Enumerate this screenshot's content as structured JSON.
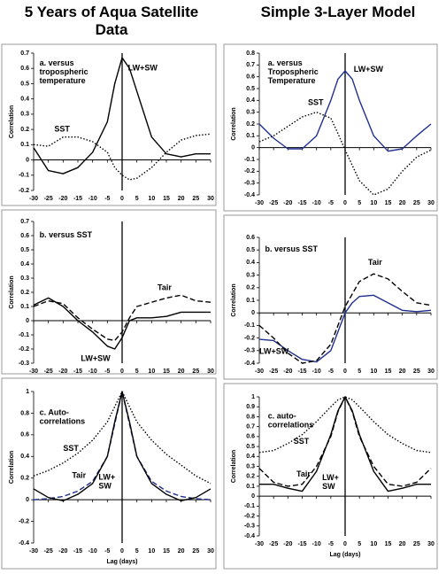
{
  "column_titles": [
    "5 Years of Aqua Satellite Data",
    "Simple 3-Layer Model"
  ],
  "chart_data": [
    {
      "type": "line",
      "panel_label": [
        "a. versus",
        "tropospheric",
        "temperature"
      ],
      "y_label": "Correlation",
      "x": [
        -30,
        -25,
        -20,
        -15,
        -10,
        -5,
        -2.5,
        0,
        2.5,
        5,
        10,
        15,
        20,
        25,
        30
      ],
      "xlim": [
        -30,
        30
      ],
      "xticks": [
        -30,
        -25,
        -20,
        -15,
        -10,
        -5,
        0,
        5,
        10,
        15,
        20,
        25,
        30
      ],
      "ylim": [
        -0.2,
        0.7
      ],
      "yticks": [
        -0.2,
        -0.1,
        0,
        0.1,
        0.2,
        0.3,
        0.4,
        0.5,
        0.6,
        0.7
      ],
      "series": [
        {
          "name": "LW+SW",
          "color": "#000000",
          "dash": "solid",
          "values": [
            0.08,
            -0.07,
            -0.09,
            -0.05,
            0.05,
            0.25,
            0.5,
            0.67,
            0.6,
            0.45,
            0.15,
            0.04,
            0.02,
            0.04,
            0.04
          ]
        },
        {
          "name": "SST",
          "color": "#000000",
          "dash": "dotted",
          "values": [
            0.1,
            0.09,
            0.15,
            0.15,
            0.12,
            0.05,
            -0.05,
            -0.1,
            -0.13,
            -0.12,
            -0.05,
            0.05,
            0.13,
            0.16,
            0.17
          ]
        }
      ]
    },
    {
      "type": "line",
      "panel_label": [
        "a. versus",
        "Tropospheric",
        "Temperature"
      ],
      "y_label": "Correlation",
      "x": [
        -30,
        -25,
        -20,
        -15,
        -10,
        -5,
        -2.5,
        0,
        2.5,
        5,
        10,
        15,
        20,
        25,
        30
      ],
      "xlim": [
        -30,
        30
      ],
      "xticks": [
        -30,
        -25,
        -20,
        -15,
        -10,
        -5,
        0,
        5,
        10,
        15,
        20,
        25,
        30
      ],
      "ylim": [
        -0.4,
        0.8
      ],
      "yticks": [
        -0.4,
        -0.3,
        -0.2,
        -0.1,
        0,
        0.1,
        0.2,
        0.3,
        0.4,
        0.5,
        0.6,
        0.7,
        0.8
      ],
      "series": [
        {
          "name": "LW+SW",
          "color": "#1f2f8f",
          "dash": "solid",
          "values": [
            0.2,
            0.08,
            -0.01,
            -0.01,
            0.1,
            0.4,
            0.58,
            0.65,
            0.58,
            0.4,
            0.1,
            -0.03,
            -0.01,
            0.1,
            0.2
          ]
        },
        {
          "name": "SST",
          "color": "#000000",
          "dash": "dotted",
          "values": [
            0.05,
            0.1,
            0.18,
            0.26,
            0.3,
            0.25,
            0.12,
            -0.02,
            -0.15,
            -0.28,
            -0.4,
            -0.35,
            -0.2,
            -0.08,
            -0.02
          ]
        }
      ]
    },
    {
      "type": "line",
      "panel_label": [
        "b. versus SST"
      ],
      "y_label": "Correlation",
      "x": [
        -30,
        -25,
        -20,
        -15,
        -10,
        -5,
        -2.5,
        0,
        2.5,
        5,
        10,
        15,
        20,
        25,
        30
      ],
      "xlim": [
        -30,
        30
      ],
      "xticks": [
        -30,
        -25,
        -20,
        -15,
        -10,
        -5,
        0,
        5,
        10,
        15,
        20,
        25,
        30
      ],
      "ylim": [
        -0.3,
        0.7
      ],
      "yticks": [
        -0.3,
        -0.2,
        -0.1,
        0,
        0.1,
        0.2,
        0.3,
        0.4,
        0.5,
        0.6,
        0.7
      ],
      "series": [
        {
          "name": "LW+SW",
          "color": "#000000",
          "dash": "solid",
          "values": [
            0.11,
            0.16,
            0.1,
            0.0,
            -0.08,
            -0.18,
            -0.2,
            -0.12,
            0.0,
            0.02,
            0.02,
            0.03,
            0.06,
            0.06,
            0.06
          ]
        },
        {
          "name": "Tair",
          "color": "#000000",
          "dash": "dashed",
          "values": [
            0.1,
            0.14,
            0.12,
            0.02,
            -0.06,
            -0.13,
            -0.14,
            -0.08,
            0.02,
            0.1,
            0.13,
            0.16,
            0.18,
            0.14,
            0.13
          ]
        }
      ]
    },
    {
      "type": "line",
      "panel_label": [
        "b. versus SST"
      ],
      "y_label": "Correlation",
      "x": [
        -30,
        -25,
        -20,
        -15,
        -10,
        -5,
        -2.5,
        0,
        2.5,
        5,
        10,
        15,
        20,
        25,
        30
      ],
      "xlim": [
        -30,
        30
      ],
      "xticks": [
        -30,
        -25,
        -20,
        -15,
        -10,
        -5,
        0,
        5,
        10,
        15,
        20,
        25,
        30
      ],
      "ylim": [
        -0.4,
        0.6
      ],
      "yticks": [
        -0.4,
        -0.3,
        -0.2,
        -0.1,
        0,
        0.1,
        0.2,
        0.3,
        0.4,
        0.5,
        0.6
      ],
      "series": [
        {
          "name": "LW+SW",
          "color": "#1f2f8f",
          "dash": "solid",
          "values": [
            -0.21,
            -0.22,
            -0.3,
            -0.37,
            -0.39,
            -0.3,
            -0.15,
            0.0,
            0.08,
            0.13,
            0.14,
            0.08,
            0.02,
            0.01,
            0.02
          ]
        },
        {
          "name": "Tair",
          "color": "#000000",
          "dash": "dashed",
          "values": [
            -0.1,
            -0.2,
            -0.32,
            -0.4,
            -0.38,
            -0.25,
            -0.1,
            0.05,
            0.15,
            0.25,
            0.31,
            0.27,
            0.17,
            0.08,
            0.06
          ]
        }
      ]
    },
    {
      "type": "line",
      "panel_label": [
        "c. Auto-",
        "correlations"
      ],
      "y_label": "Correlation",
      "x_label": "Lag (days)",
      "x": [
        -30,
        -25,
        -20,
        -15,
        -10,
        -5,
        -2.5,
        0,
        2.5,
        5,
        10,
        15,
        20,
        25,
        30
      ],
      "xlim": [
        -30,
        30
      ],
      "xticks": [
        -30,
        -25,
        -20,
        -15,
        -10,
        -5,
        0,
        5,
        10,
        15,
        20,
        25,
        30
      ],
      "ylim": [
        -0.4,
        1
      ],
      "yticks": [
        -0.4,
        -0.2,
        0,
        0.2,
        0.4,
        0.6,
        0.8,
        1
      ],
      "series": [
        {
          "name": "SST",
          "color": "#000000",
          "dash": "dotted",
          "values": [
            0.22,
            0.27,
            0.34,
            0.43,
            0.55,
            0.72,
            0.86,
            1,
            0.86,
            0.72,
            0.55,
            0.42,
            0.32,
            0.22,
            0.15
          ]
        },
        {
          "name": "Tair",
          "color": "#1f2f8f",
          "dash": "dashed",
          "values": [
            0.0,
            0.01,
            0.03,
            0.08,
            0.17,
            0.4,
            0.7,
            1,
            0.7,
            0.4,
            0.17,
            0.08,
            0.03,
            0.01,
            0.0
          ]
        },
        {
          "name": "LW+ SW",
          "color": "#000000",
          "dash": "solid",
          "values": [
            0.1,
            0.02,
            -0.01,
            0.05,
            0.15,
            0.4,
            0.72,
            1,
            0.72,
            0.4,
            0.15,
            0.05,
            -0.01,
            0.02,
            0.1
          ]
        }
      ]
    },
    {
      "type": "line",
      "panel_label": [
        "c. auto-",
        "correlations"
      ],
      "y_label": "Correlation",
      "x_label": "Lag (days)",
      "x": [
        -30,
        -25,
        -20,
        -15,
        -10,
        -5,
        -2.5,
        0,
        2.5,
        5,
        10,
        15,
        20,
        25,
        30
      ],
      "xlim": [
        -30,
        30
      ],
      "xticks": [
        -30,
        -25,
        -20,
        -15,
        -10,
        -5,
        0,
        5,
        10,
        15,
        20,
        25,
        30
      ],
      "ylim": [
        -0.4,
        1
      ],
      "yticks": [
        -0.4,
        -0.3,
        -0.2,
        -0.1,
        0,
        0.1,
        0.2,
        0.3,
        0.4,
        0.5,
        0.6,
        0.7,
        0.8,
        0.9,
        1
      ],
      "series": [
        {
          "name": "SST",
          "color": "#000000",
          "dash": "dotted",
          "values": [
            0.44,
            0.46,
            0.53,
            0.62,
            0.75,
            0.9,
            0.97,
            1,
            0.97,
            0.9,
            0.75,
            0.62,
            0.53,
            0.46,
            0.44
          ]
        },
        {
          "name": "Tair",
          "color": "#000000",
          "dash": "dashed",
          "values": [
            0.28,
            0.14,
            0.1,
            0.12,
            0.3,
            0.6,
            0.85,
            1,
            0.85,
            0.6,
            0.3,
            0.12,
            0.1,
            0.14,
            0.28
          ]
        },
        {
          "name": "LW+ SW",
          "color": "#000000",
          "dash": "solid",
          "values": [
            0.12,
            0.12,
            0.08,
            0.05,
            0.25,
            0.62,
            0.86,
            1,
            0.86,
            0.62,
            0.25,
            0.05,
            0.08,
            0.12,
            0.12
          ]
        }
      ]
    }
  ]
}
